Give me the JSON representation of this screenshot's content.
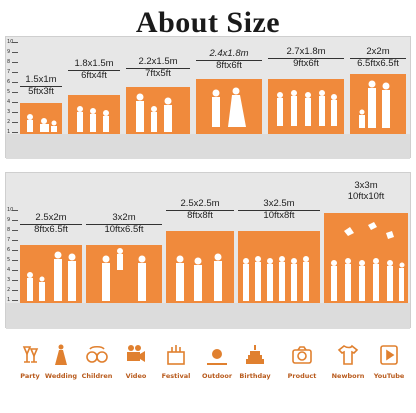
{
  "title": "About Size",
  "ruler_ticks": [
    "10",
    "9",
    "8",
    "7",
    "6",
    "5",
    "4",
    "3",
    "2",
    "1"
  ],
  "top_sizes": [
    {
      "metric": "1.5x1m",
      "imperial": "5ftx3ft"
    },
    {
      "metric": "1.8x1.5m",
      "imperial": "6ftx4ft"
    },
    {
      "metric": "2.2x1.5m",
      "imperial": "7ftx5ft"
    },
    {
      "metric": "2.4x1.8m",
      "imperial": "8ftx6ft"
    },
    {
      "metric": "2.7x1.8m",
      "imperial": "9ftx6ft"
    },
    {
      "metric": "2x2m",
      "imperial": "6.5ftx6.5ft"
    }
  ],
  "bottom_sizes": [
    {
      "metric": "2.5x2m",
      "imperial": "8ftx6.5ft"
    },
    {
      "metric": "3x2m",
      "imperial": "10ftx6.5ft"
    },
    {
      "metric": "2.5x2.5m",
      "imperial": "8ftx8ft"
    },
    {
      "metric": "3x2.5m",
      "imperial": "10ftx8ft"
    },
    {
      "metric": "3x3m",
      "imperial": "10ftx10ft"
    }
  ],
  "occasions": [
    {
      "label": "Party",
      "icon": "party-icon"
    },
    {
      "label": "Wedding",
      "icon": "wedding-icon"
    },
    {
      "label": "Children",
      "icon": "children-icon"
    },
    {
      "label": "Video",
      "icon": "video-camera-icon"
    },
    {
      "label": "Festival",
      "icon": "festival-icon"
    },
    {
      "label": "Outdoor",
      "icon": "outdoor-icon"
    },
    {
      "label": "Birthday",
      "icon": "birthday-cake-icon"
    },
    {
      "label": "Product",
      "icon": "product-camera-icon"
    },
    {
      "label": "Newborn",
      "icon": "newborn-icon"
    },
    {
      "label": "YouTube",
      "icon": "youtube-icon"
    }
  ],
  "colors": {
    "backdrop": "#f08a3c",
    "panel": "#e7e7e7",
    "icon": "#e0802f",
    "icon_label": "#b85a1c"
  }
}
